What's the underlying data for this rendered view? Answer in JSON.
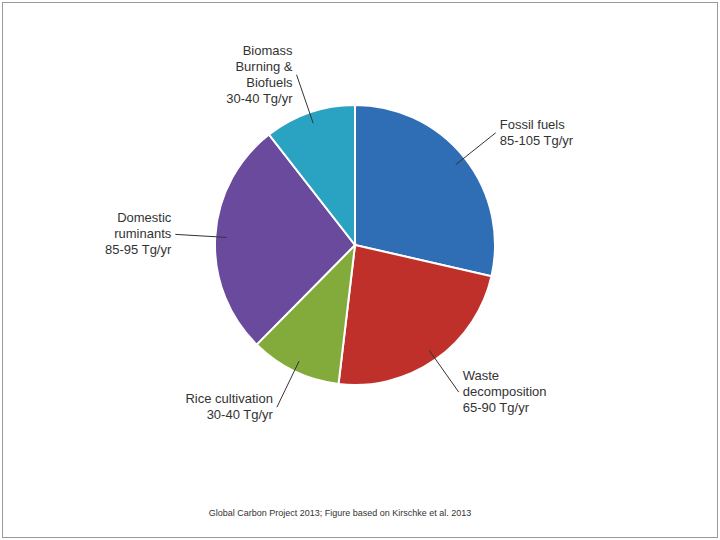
{
  "chart_data": {
    "type": "pie",
    "categories": [
      "Fossil fuels",
      "Waste decomposition",
      "Rice cultivation",
      "Domestic ruminants",
      "Biomass Burning & Biofuels"
    ],
    "values": [
      95,
      77.5,
      35,
      90,
      35
    ],
    "value_labels": [
      "85-105 Tg/yr",
      "65-90 Tg/yr",
      "30-40 Tg/yr",
      "85-95 Tg/yr",
      "30-40 Tg/yr"
    ],
    "colors": [
      "#2f6db5",
      "#c0302b",
      "#82ab3c",
      "#6a4a9c",
      "#2aa3c2"
    ],
    "data_labels": true,
    "source": "Global Carbon Project 2013; Figure based on Kirschke et al. 2013"
  }
}
